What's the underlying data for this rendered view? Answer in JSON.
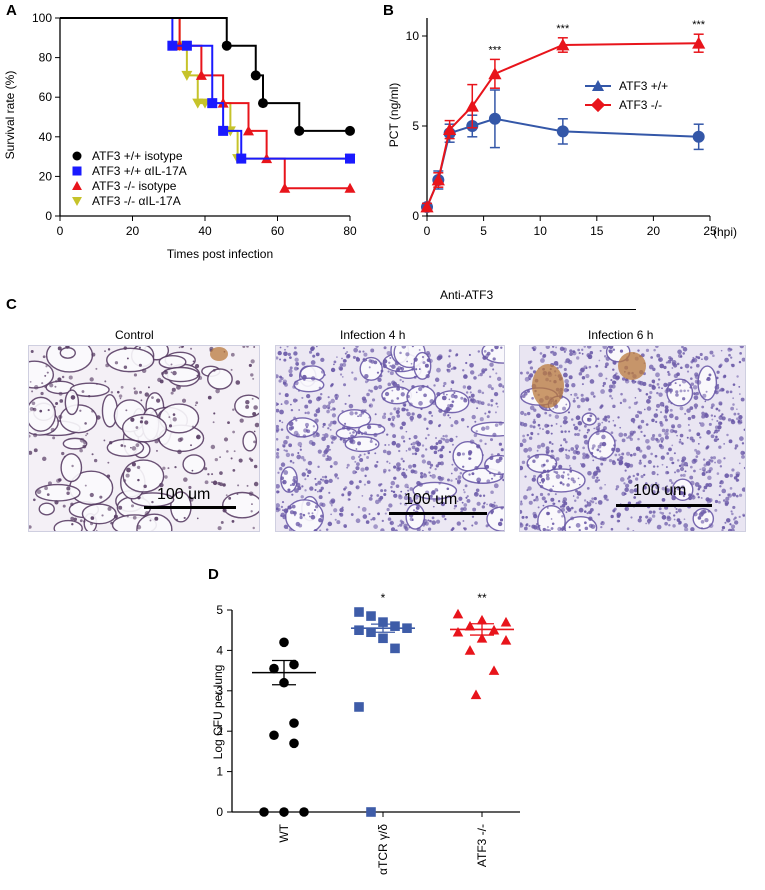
{
  "panels": {
    "A": "A",
    "B": "B",
    "C": "C",
    "D": "D"
  },
  "chart_data": [
    {
      "id": "A",
      "type": "line",
      "step": true,
      "title": "",
      "xlabel": "Times post infection",
      "ylabel": "Survival rate (%)",
      "xlim": [
        0,
        80
      ],
      "ylim": [
        0,
        100
      ],
      "xticks": [
        "0",
        "20",
        "40",
        "60",
        "80"
      ],
      "yticks": [
        "0",
        "20",
        "40",
        "60",
        "80",
        "100"
      ],
      "legend_position": "bottom-left",
      "series": [
        {
          "name": "ATF3 +/+ isotype",
          "color": "#000000",
          "marker": "circle",
          "x": [
            0,
            46,
            54,
            56,
            66,
            80
          ],
          "y": [
            100,
            86,
            71,
            57,
            43,
            43
          ]
        },
        {
          "name": "ATF3 +/+ αIL-17A",
          "color": "#1a1aff",
          "marker": "square",
          "x": [
            0,
            31,
            35,
            42,
            45,
            50,
            80
          ],
          "y": [
            100,
            86,
            86,
            57,
            43,
            29,
            29
          ]
        },
        {
          "name": "ATF3 -/- isotype",
          "color": "#e8141b",
          "marker": "triangle",
          "x": [
            0,
            33,
            39,
            45,
            52,
            57,
            62,
            80
          ],
          "y": [
            100,
            86,
            71,
            57,
            43,
            29,
            14,
            14
          ]
        },
        {
          "name": "ATF3 -/- αIL-17A",
          "color": "#c6c32a",
          "marker": "triangle-down",
          "x": [
            0,
            33,
            35,
            38,
            40,
            47,
            49,
            80
          ],
          "y": [
            100,
            86,
            71,
            57,
            57,
            43,
            29,
            29
          ]
        }
      ]
    },
    {
      "id": "B",
      "type": "line",
      "title": "",
      "xlabel": "",
      "x_unit": "(hpi)",
      "ylabel": "PCT (ng/ml)",
      "xlim": [
        0,
        25
      ],
      "ylim": [
        0,
        11
      ],
      "xticks": [
        "0",
        "5",
        "10",
        "15",
        "20",
        "25"
      ],
      "yticks": [
        "0",
        "5",
        "10"
      ],
      "legend_position": "center-right",
      "significance": [
        {
          "x": 6,
          "label": "***"
        },
        {
          "x": 12,
          "label": "***"
        },
        {
          "x": 24,
          "label": "***"
        }
      ],
      "series": [
        {
          "name": "ATF3 +/+",
          "color": "#3457a8",
          "marker": "circle",
          "legend_marker": "triangle",
          "x": [
            0,
            1,
            2,
            4,
            6,
            12,
            24
          ],
          "y": [
            0.5,
            2.0,
            4.6,
            5.0,
            5.4,
            4.7,
            4.4
          ],
          "err": [
            0.2,
            0.5,
            0.5,
            0.6,
            1.6,
            0.7,
            0.7
          ]
        },
        {
          "name": "ATF3 -/-",
          "color": "#e8141b",
          "marker": "triangle",
          "legend_marker": "diamond",
          "x": [
            0,
            1,
            2,
            4,
            6,
            12,
            24
          ],
          "y": [
            0.5,
            2.0,
            4.8,
            6.1,
            7.9,
            9.5,
            9.6
          ],
          "err": [
            0.2,
            0.4,
            0.5,
            1.2,
            0.8,
            0.4,
            0.5
          ]
        }
      ]
    },
    {
      "id": "D",
      "type": "scatter",
      "title": "",
      "xlabel": "",
      "ylabel": "Log CFU per lung",
      "ylim": [
        0,
        5
      ],
      "yticks": [
        "0",
        "1",
        "2",
        "3",
        "4",
        "5"
      ],
      "categories": [
        "WT",
        "αTCR γ/δ",
        "ATF3 -/-"
      ],
      "significance": [
        "",
        "*",
        "**"
      ],
      "groups": [
        {
          "name": "WT",
          "color": "#000000",
          "marker": "circle",
          "values": [
            4.2,
            3.65,
            3.55,
            3.2,
            2.2,
            1.9,
            1.7,
            0,
            0,
            0
          ],
          "mean": 3.45,
          "sem": 0.3
        },
        {
          "name": "αTCR γ/δ",
          "color": "#3e5ca8",
          "marker": "square",
          "values": [
            4.95,
            4.85,
            4.7,
            4.6,
            4.55,
            4.5,
            4.45,
            4.3,
            4.05,
            2.6,
            0
          ],
          "mean": 4.55,
          "sem": 0.1
        },
        {
          "name": "ATF3 -/-",
          "color": "#e8141b",
          "marker": "triangle",
          "values": [
            4.9,
            4.75,
            4.7,
            4.6,
            4.5,
            4.45,
            4.3,
            4.25,
            4.0,
            3.5,
            2.9
          ],
          "mean": 4.52,
          "sem": 0.14
        }
      ]
    }
  ],
  "histology": {
    "group_label": "Anti-ATF3",
    "images": [
      {
        "title": "Control",
        "scale": "100 um"
      },
      {
        "title": "Infection 4 h",
        "scale": "100 um"
      },
      {
        "title": "Infection 6 h",
        "scale": "100 um"
      }
    ],
    "colors": {
      "background": "#f3eef6",
      "stain": "#6b5aa8",
      "brown": "#b97a3c"
    }
  }
}
